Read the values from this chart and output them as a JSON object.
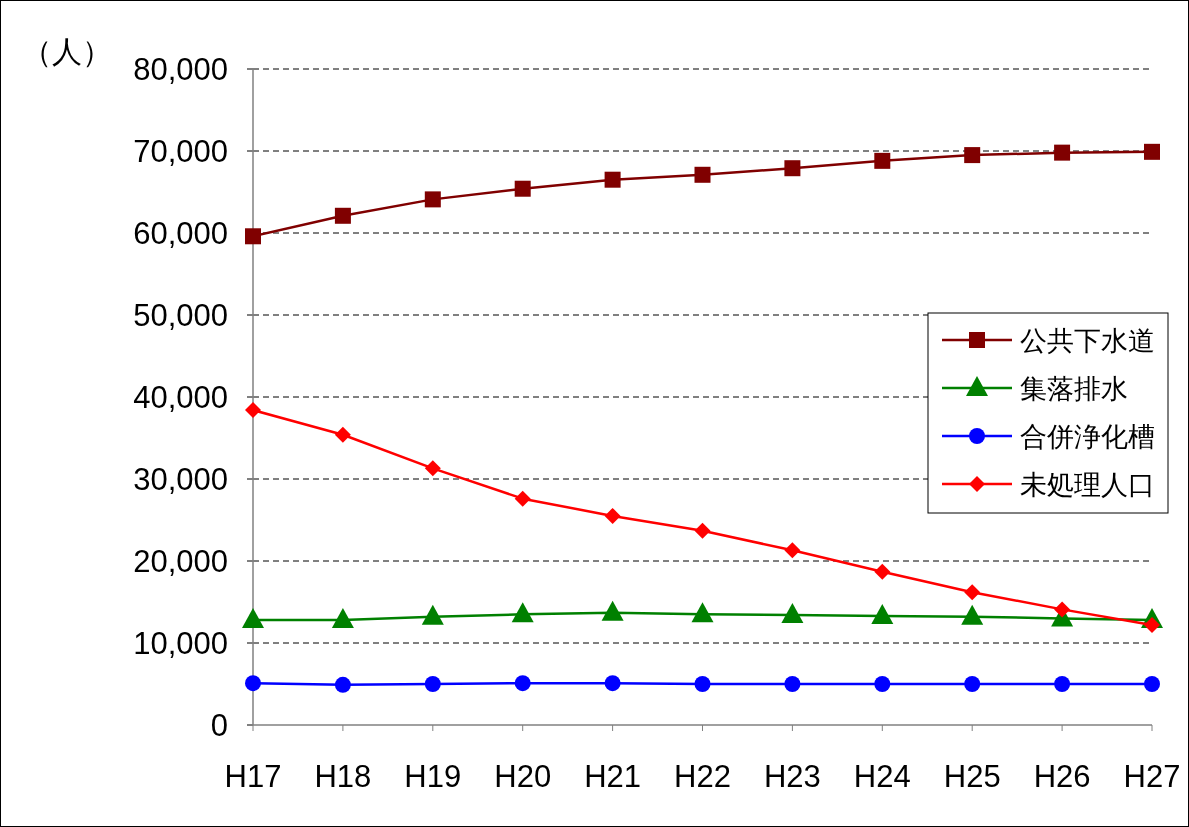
{
  "chart_data": {
    "type": "line",
    "ylabel": "（人）",
    "categories": [
      "H17",
      "H18",
      "H19",
      "H20",
      "H21",
      "H22",
      "H23",
      "H24",
      "H25",
      "H26",
      "H27"
    ],
    "series": [
      {
        "name": "公共下水道",
        "color": "#800000",
        "marker": "square",
        "values": [
          59600,
          62100,
          64100,
          65400,
          66500,
          67100,
          67900,
          68800,
          69500,
          69800,
          69900
        ]
      },
      {
        "name": "集落排水",
        "color": "#008000",
        "marker": "triangle",
        "values": [
          12800,
          12800,
          13200,
          13500,
          13700,
          13500,
          13400,
          13300,
          13200,
          13000,
          12800
        ]
      },
      {
        "name": "合併浄化槽",
        "color": "#0000ff",
        "marker": "circle",
        "values": [
          5100,
          4900,
          5000,
          5100,
          5100,
          5000,
          5000,
          5000,
          5000,
          5000,
          5000
        ]
      },
      {
        "name": "未処理人口",
        "color": "#ff0000",
        "marker": "diamond",
        "values": [
          38400,
          35400,
          31300,
          27600,
          25500,
          23700,
          21300,
          18700,
          16200,
          14100,
          12200
        ]
      }
    ],
    "ylim": [
      0,
      80000
    ],
    "yticks": [
      {
        "value": 0,
        "label": "0"
      },
      {
        "value": 10000,
        "label": "10,000"
      },
      {
        "value": 20000,
        "label": "20,000"
      },
      {
        "value": 30000,
        "label": "30,000"
      },
      {
        "value": 40000,
        "label": "40,000"
      },
      {
        "value": 50000,
        "label": "50,000"
      },
      {
        "value": 60000,
        "label": "60,000"
      },
      {
        "value": 70000,
        "label": "70,000"
      },
      {
        "value": 80000,
        "label": "80,000"
      }
    ],
    "grid": "y",
    "legend": "right",
    "line_style": "solid"
  }
}
